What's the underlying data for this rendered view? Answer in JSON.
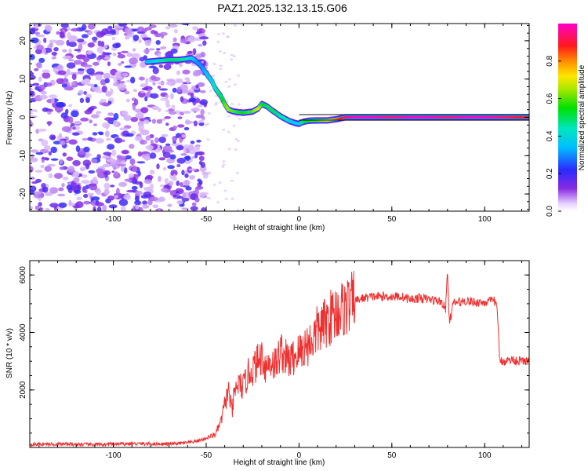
{
  "title": "PAZ1.2025.132.13.15.G06",
  "chart_data": [
    {
      "type": "heatmap",
      "xlabel": "Height of straight line (km)",
      "ylabel": "Frequency (Hz)",
      "xlim": [
        -145,
        124
      ],
      "ylim": [
        -24.5,
        24.5
      ],
      "xticks": [
        -100,
        -50,
        0,
        50,
        100
      ],
      "yticks": [
        -20,
        -10,
        0,
        10,
        20
      ],
      "colorbar": {
        "label": "Normalized spectral amplitude",
        "range": [
          0.0,
          1.0
        ],
        "ticks": [
          "0.0",
          "0.2",
          "0.4",
          "0.6",
          "0.8"
        ],
        "colormap": "rainbow (violet-blue-cyan-green-yellow-red-magenta)"
      },
      "noise_region_km": [
        -145,
        -50
      ],
      "ridge": {
        "x": [
          -82,
          -75,
          -70,
          -65,
          -60,
          -58,
          -55,
          -52,
          -50,
          -47,
          -45,
          -42,
          -40,
          -38,
          -35,
          -30,
          -25,
          -22,
          -20,
          -17,
          -15,
          -12,
          -10,
          -7,
          -5,
          -2,
          0,
          2,
          5,
          10,
          15,
          20,
          25,
          30,
          40,
          50,
          60,
          70,
          80,
          90,
          100,
          110,
          120,
          124
        ],
        "frequency": [
          14.5,
          14.8,
          15,
          15,
          15.3,
          15.5,
          14.5,
          13,
          11.5,
          9.5,
          7.5,
          5.5,
          3.5,
          2,
          1.5,
          1.2,
          1.5,
          2.3,
          3.5,
          2.8,
          2.0,
          1.0,
          0.3,
          -0.5,
          -1.0,
          -1.5,
          -1.7,
          -1.2,
          -0.9,
          -0.8,
          -0.8,
          -0.5,
          0.0,
          0.0,
          0.0,
          0.0,
          0.0,
          0.0,
          0.0,
          0.0,
          0.0,
          0.0,
          0.0,
          0.0
        ],
        "amplitude": [
          0.35,
          0.45,
          0.5,
          0.5,
          0.45,
          0.4,
          0.3,
          0.3,
          0.35,
          0.4,
          0.45,
          0.5,
          0.6,
          0.65,
          0.6,
          0.55,
          0.6,
          0.7,
          0.55,
          0.5,
          0.5,
          0.5,
          0.45,
          0.45,
          0.4,
          0.35,
          0.35,
          0.5,
          0.55,
          0.6,
          0.7,
          0.8,
          0.95,
          1.0,
          1.0,
          0.95,
          1.0,
          1.0,
          0.95,
          1.0,
          1.0,
          0.95,
          0.9,
          0.9
        ]
      }
    },
    {
      "type": "line",
      "xlabel": "Height of straight line (km)",
      "ylabel": "SNR (10 * v/v)",
      "xlim": [
        -145,
        124
      ],
      "ylim": [
        0,
        6500
      ],
      "xticks": [
        -100,
        -50,
        0,
        50,
        100
      ],
      "yticks": [
        2000,
        4000,
        6000
      ],
      "color": "#ee3030",
      "series": [
        {
          "x": [
            -145,
            -130,
            -110,
            -90,
            -70,
            -60,
            -55,
            -50,
            -45,
            -42,
            -40,
            -38,
            -36,
            -35,
            -33,
            -30,
            -27,
            -25,
            -22,
            -20,
            -18,
            -15,
            -12,
            -10,
            -7,
            -5,
            -2,
            0,
            3,
            5,
            8,
            10,
            13,
            15,
            18,
            20,
            23,
            25,
            28,
            30,
            35,
            40,
            45,
            50,
            55,
            60,
            65,
            70,
            75,
            77,
            79,
            80,
            81,
            83,
            85,
            90,
            95,
            100,
            105,
            106,
            107,
            108,
            110,
            115,
            120,
            124
          ],
          "values": [
            110,
            120,
            100,
            130,
            120,
            160,
            220,
            320,
            460,
            900,
            1500,
            2000,
            1200,
            1800,
            2200,
            2100,
            2600,
            2700,
            3000,
            3200,
            2800,
            3000,
            2900,
            3400,
            3100,
            3000,
            3200,
            3300,
            3500,
            3600,
            3800,
            4100,
            4200,
            4400,
            4600,
            4700,
            4800,
            4900,
            5000,
            5100,
            5200,
            5250,
            5250,
            5250,
            5250,
            5150,
            5200,
            5150,
            5100,
            5050,
            4800,
            6200,
            4300,
            5000,
            5050,
            5100,
            5050,
            5050,
            5100,
            5050,
            4700,
            3000,
            3000,
            3050,
            3000,
            3000
          ]
        }
      ]
    }
  ]
}
